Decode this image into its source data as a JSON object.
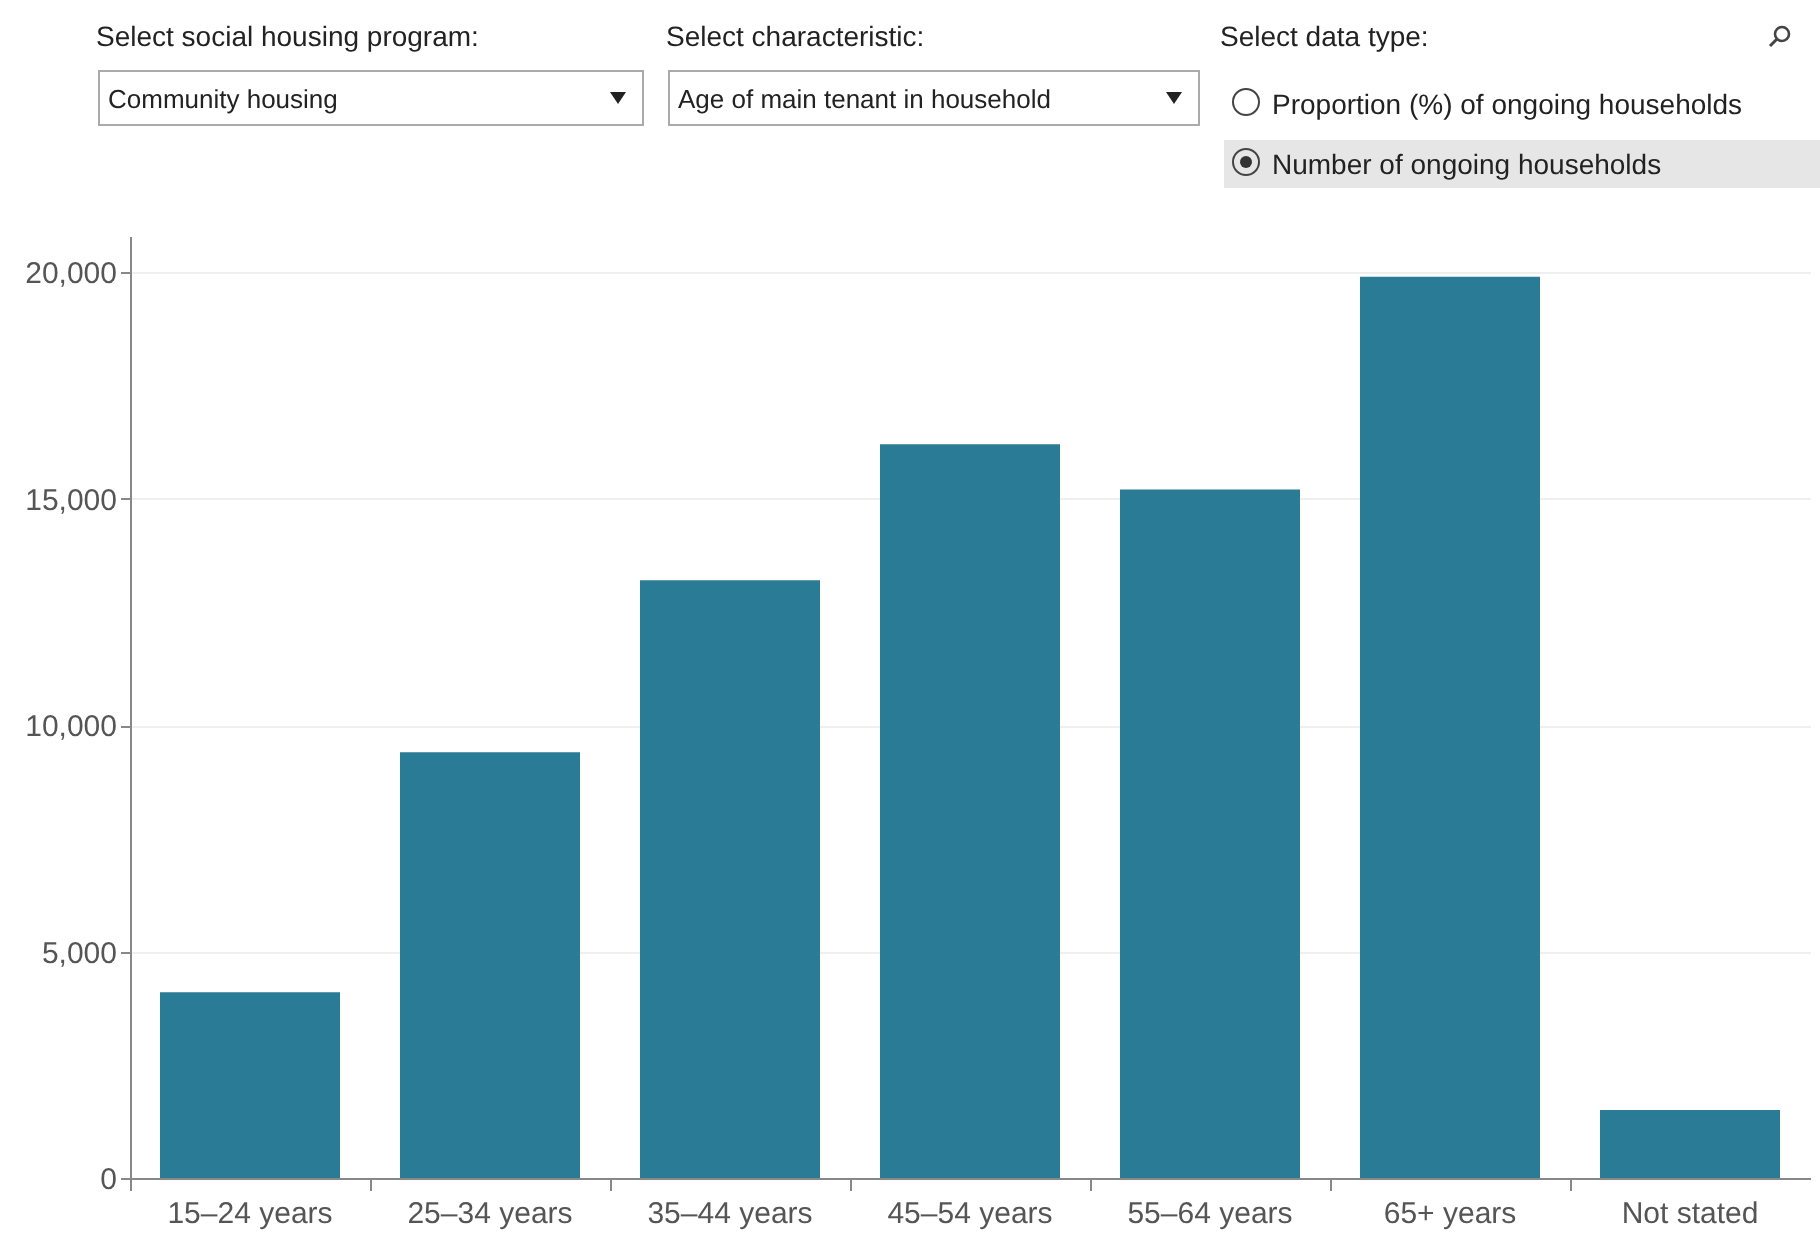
{
  "chart_data": {
    "type": "bar",
    "categories": [
      "15–24 years",
      "25–34 years",
      "35–44 years",
      "45–54 years",
      "55–64 years",
      "65+ years",
      "Not stated"
    ],
    "values": [
      4100,
      9400,
      13200,
      16200,
      15200,
      19900,
      1500
    ],
    "color": "#2a7b96",
    "ylim": [
      0,
      20800
    ],
    "yticks": [
      {
        "value": 0,
        "label": "0"
      },
      {
        "value": 5000,
        "label": "5,000"
      },
      {
        "value": 10000,
        "label": "10,000"
      },
      {
        "value": 15000,
        "label": "15,000"
      },
      {
        "value": 20000,
        "label": "20,000"
      }
    ],
    "grid": "y",
    "annotations": [
      "Select social housing program:",
      "Community housing",
      "Select characteristic:",
      "Age of main tenant in household",
      "Select data type:",
      "Proportion (%) of ongoing households",
      "Number of ongoing households"
    ]
  }
}
